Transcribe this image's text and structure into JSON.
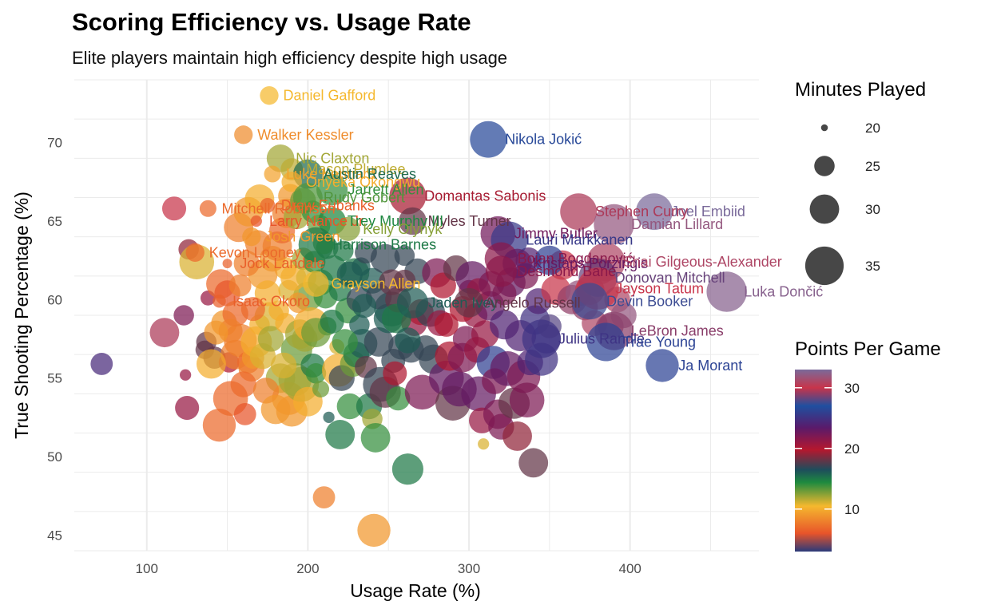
{
  "chart_data": {
    "type": "scatter",
    "title": "Scoring Efficiency vs. Usage Rate",
    "subtitle": "Elite players maintain high efficiency despite high usage",
    "xlabel": "Usage Rate (%)",
    "ylabel": "True Shooting Percentage (%)",
    "xlim": [
      55,
      480
    ],
    "ylim": [
      44,
      74
    ],
    "x_ticks": [
      100,
      200,
      300,
      400
    ],
    "y_ticks": [
      45,
      50,
      55,
      60,
      65,
      70
    ],
    "grid": true,
    "size_legend": {
      "title": "Minutes Played",
      "values": [
        20,
        25,
        30,
        35
      ]
    },
    "color_legend": {
      "title": "Points Per Game",
      "ticks": [
        10,
        20,
        30
      ],
      "range": [
        3,
        33
      ]
    },
    "colorscale": [
      "#2a3a7a",
      "#e8542a",
      "#f5b82e",
      "#1e8a3f",
      "#1e4d5c",
      "#b5172e",
      "#5a1a6a",
      "#1f4fa0",
      "#c8344a",
      "#7a6a9a"
    ],
    "labeled_points": [
      {
        "name": "Daniel Gafford",
        "x": 176,
        "y": 73.0,
        "ppg": 10.5,
        "min": 24
      },
      {
        "name": "Walker Kessler",
        "x": 160,
        "y": 70.5,
        "ppg": 8.5,
        "min": 24
      },
      {
        "name": "Nikola Jokić",
        "x": 312,
        "y": 70.2,
        "ppg": 26.5,
        "min": 34
      },
      {
        "name": "Nic Claxton",
        "x": 183,
        "y": 69.0,
        "ppg": 12.0,
        "min": 29
      },
      {
        "name": "Mason Plumlee",
        "x": 190,
        "y": 68.3,
        "ppg": 11.5,
        "min": 26
      },
      {
        "name": "Luke Kennard",
        "x": 178,
        "y": 68.0,
        "ppg": 9.5,
        "min": 23
      },
      {
        "name": "Austin Reaves",
        "x": 200,
        "y": 68.0,
        "ppg": 15.5,
        "min": 30
      },
      {
        "name": "Onyeka Okongwu",
        "x": 190,
        "y": 67.5,
        "ppg": 10.0,
        "min": 25
      },
      {
        "name": "Jarrett Allen",
        "x": 215,
        "y": 67.0,
        "ppg": 14.0,
        "min": 31
      },
      {
        "name": "Rudy Gobert",
        "x": 200,
        "y": 66.5,
        "ppg": 13.5,
        "min": 30
      },
      {
        "name": "Domantas Sabonis",
        "x": 262,
        "y": 66.6,
        "ppg": 19.5,
        "min": 34
      },
      {
        "name": "Drew Eubanks",
        "x": 175,
        "y": 66.0,
        "ppg": 6.5,
        "min": 22
      },
      {
        "name": "Mitchell Robinson",
        "x": 138,
        "y": 65.8,
        "ppg": 7.0,
        "min": 23
      },
      {
        "name": "Joel Embiid",
        "x": 415,
        "y": 65.6,
        "ppg": 33.0,
        "min": 34
      },
      {
        "name": "Stephen Curry",
        "x": 368,
        "y": 65.6,
        "ppg": 29.5,
        "min": 34
      },
      {
        "name": "Myles Turner",
        "x": 265,
        "y": 65.0,
        "ppg": 18.0,
        "min": 29
      },
      {
        "name": "Larry Nance Jr.",
        "x": 168,
        "y": 65.0,
        "ppg": 6.0,
        "min": 20
      },
      {
        "name": "Trey Murphy III",
        "x": 215,
        "y": 65.0,
        "ppg": 14.5,
        "min": 29
      },
      {
        "name": "Kelly Olynyk",
        "x": 225,
        "y": 64.5,
        "ppg": 12.5,
        "min": 27
      },
      {
        "name": "Damian Lillard",
        "x": 390,
        "y": 64.8,
        "ppg": 32.0,
        "min": 36
      },
      {
        "name": "Jimmy Butler",
        "x": 318,
        "y": 64.2,
        "ppg": 22.5,
        "min": 33
      },
      {
        "name": "Lauri Markkanen",
        "x": 325,
        "y": 63.8,
        "ppg": 25.5,
        "min": 34
      },
      {
        "name": "Josh Green",
        "x": 165,
        "y": 64.0,
        "ppg": 9.0,
        "min": 24
      },
      {
        "name": "Harrison Barnes",
        "x": 205,
        "y": 63.5,
        "ppg": 15.0,
        "min": 33
      },
      {
        "name": "Kevon Looney",
        "x": 130,
        "y": 63.0,
        "ppg": 7.0,
        "min": 24
      },
      {
        "name": "Bojan Bogdanović",
        "x": 320,
        "y": 62.6,
        "ppg": 21.5,
        "min": 32
      },
      {
        "name": "Kristaps Porziņģis",
        "x": 330,
        "y": 62.3,
        "ppg": 23.0,
        "min": 30
      },
      {
        "name": "Shai Gilgeous-Alexander",
        "x": 385,
        "y": 62.4,
        "ppg": 31.0,
        "min": 35
      },
      {
        "name": "Jock Landale",
        "x": 150,
        "y": 62.3,
        "ppg": 6.5,
        "min": 19
      },
      {
        "name": "Desmond Bane",
        "x": 320,
        "y": 61.8,
        "ppg": 21.5,
        "min": 31
      },
      {
        "name": "Donovan Mitchell",
        "x": 380,
        "y": 61.4,
        "ppg": 28.3,
        "min": 35
      },
      {
        "name": "Grayson Allen",
        "x": 205,
        "y": 61.0,
        "ppg": 10.5,
        "min": 28
      },
      {
        "name": "Jayson Tatum",
        "x": 380,
        "y": 60.7,
        "ppg": 30.0,
        "min": 37
      },
      {
        "name": "Luka Dončić",
        "x": 460,
        "y": 60.5,
        "ppg": 32.5,
        "min": 36
      },
      {
        "name": "Devin Booker",
        "x": 375,
        "y": 59.9,
        "ppg": 27.5,
        "min": 34
      },
      {
        "name": "Isaac Okoro",
        "x": 145,
        "y": 59.9,
        "ppg": 6.5,
        "min": 21
      },
      {
        "name": "Jaden Ivey",
        "x": 265,
        "y": 59.8,
        "ppg": 16.0,
        "min": 31
      },
      {
        "name": "Angelo Russell",
        "x": 300,
        "y": 59.8,
        "ppg": 18.0,
        "min": 30
      },
      {
        "name": "LeBron James",
        "x": 390,
        "y": 58.0,
        "ppg": 28.9,
        "min": 35
      },
      {
        "name": "Julius Randle",
        "x": 345,
        "y": 57.5,
        "ppg": 25.1,
        "min": 35
      },
      {
        "name": "Trae Young",
        "x": 385,
        "y": 57.3,
        "ppg": 26.2,
        "min": 35
      },
      {
        "name": "Ja Morant",
        "x": 420,
        "y": 55.8,
        "ppg": 26.2,
        "min": 32
      }
    ],
    "other_points": [
      [
        72,
        55.9,
        24.5,
        26
      ],
      [
        111,
        57.9,
        29.5,
        30
      ],
      [
        117,
        65.8,
        30,
        27
      ],
      [
        123,
        59.0,
        22,
        25
      ],
      [
        124,
        55.2,
        21,
        20
      ],
      [
        125,
        53.1,
        21,
        27
      ],
      [
        126,
        63.2,
        19,
        25
      ],
      [
        131,
        62.4,
        11,
        33
      ],
      [
        136,
        56.8,
        18,
        24
      ],
      [
        137,
        57.3,
        18,
        25
      ],
      [
        138,
        60.1,
        21,
        22
      ],
      [
        142,
        56.3,
        18,
        26
      ],
      [
        145,
        52.0,
        7,
        32
      ],
      [
        146,
        61.0,
        7,
        30
      ],
      [
        148,
        58.5,
        9,
        28
      ],
      [
        151,
        56.0,
        20,
        25
      ],
      [
        152,
        53.7,
        7,
        33
      ],
      [
        155,
        56.5,
        8,
        30
      ],
      [
        158,
        57.4,
        8,
        32
      ],
      [
        161,
        52.7,
        6,
        26
      ],
      [
        163,
        56.0,
        7,
        26
      ],
      [
        165,
        55.6,
        8,
        28
      ],
      [
        166,
        56.3,
        9,
        26
      ],
      [
        168,
        57.3,
        10,
        31
      ],
      [
        170,
        58.4,
        10,
        25
      ],
      [
        172,
        56.4,
        11,
        28
      ],
      [
        176,
        58.9,
        11,
        30
      ],
      [
        177,
        57.5,
        12,
        28
      ],
      [
        182,
        59.3,
        10,
        25
      ],
      [
        183,
        55.0,
        12,
        30
      ],
      [
        186,
        58.5,
        10,
        25
      ],
      [
        188,
        53.7,
        9,
        32
      ],
      [
        190,
        52.9,
        9,
        31
      ],
      [
        192,
        54.9,
        12,
        32
      ],
      [
        193,
        56.8,
        13,
        31
      ],
      [
        195,
        57.8,
        12,
        30
      ],
      [
        196,
        54.6,
        12,
        33
      ],
      [
        198,
        57.5,
        12,
        28
      ],
      [
        200,
        60.2,
        13,
        30
      ],
      [
        200,
        53.5,
        10,
        30
      ],
      [
        202,
        58.4,
        10,
        33
      ],
      [
        203,
        55.8,
        15,
        27
      ],
      [
        205,
        55.3,
        14,
        25
      ],
      [
        208,
        54.3,
        13,
        23
      ],
      [
        210,
        47.4,
        8,
        26
      ],
      [
        211,
        60.2,
        14,
        27
      ],
      [
        212,
        58.3,
        14,
        24
      ],
      [
        213,
        52.5,
        16,
        20
      ],
      [
        218,
        57.0,
        11,
        22
      ],
      [
        219,
        55.5,
        10,
        32
      ],
      [
        220,
        51.4,
        15,
        30
      ],
      [
        221,
        55.0,
        17,
        28
      ],
      [
        225,
        59.3,
        14,
        28
      ],
      [
        226,
        53.2,
        14,
        28
      ],
      [
        228,
        55.9,
        13,
        28
      ],
      [
        229,
        61.7,
        15,
        30
      ],
      [
        230,
        56.5,
        15,
        28
      ],
      [
        232,
        58.4,
        16,
        25
      ],
      [
        233,
        62.1,
        16,
        24
      ],
      [
        234,
        57.2,
        16,
        30
      ],
      [
        236,
        55.7,
        18,
        26
      ],
      [
        238,
        53.2,
        15,
        28
      ],
      [
        240,
        52.4,
        12,
        25
      ],
      [
        241,
        45.3,
        9,
        32
      ],
      [
        242,
        51.2,
        14,
        30
      ],
      [
        244,
        57.3,
        17,
        30
      ],
      [
        245,
        54.6,
        17,
        33
      ],
      [
        248,
        54.1,
        18,
        31
      ],
      [
        250,
        58.8,
        16,
        30
      ],
      [
        252,
        59.4,
        16,
        33
      ],
      [
        253,
        56.1,
        17,
        27
      ],
      [
        254,
        55.3,
        20,
        27
      ],
      [
        256,
        53.7,
        14,
        27
      ],
      [
        258,
        57.0,
        17,
        28
      ],
      [
        260,
        62.8,
        17,
        25
      ],
      [
        262,
        49.2,
        15,
        31
      ],
      [
        264,
        56.8,
        17,
        28
      ],
      [
        266,
        58.5,
        21,
        28
      ],
      [
        268,
        61.8,
        17,
        28
      ],
      [
        270,
        59.2,
        20,
        28
      ],
      [
        271,
        54.1,
        22,
        33
      ],
      [
        273,
        56.9,
        17,
        28
      ],
      [
        276,
        59.2,
        17,
        30
      ],
      [
        278,
        56.2,
        17,
        30
      ],
      [
        280,
        61.7,
        22,
        30
      ],
      [
        282,
        58.5,
        21,
        28
      ],
      [
        284,
        60.9,
        20,
        28
      ],
      [
        286,
        55.0,
        23,
        33
      ],
      [
        288,
        56.4,
        20,
        30
      ],
      [
        290,
        53.4,
        18,
        33
      ],
      [
        292,
        62.0,
        18,
        28
      ],
      [
        294,
        54.3,
        23,
        33
      ],
      [
        296,
        56.3,
        22,
        30
      ],
      [
        298,
        57.5,
        22,
        28
      ],
      [
        300,
        60.6,
        21,
        25
      ],
      [
        302,
        61.4,
        23,
        32
      ],
      [
        304,
        59.0,
        21,
        27
      ],
      [
        305,
        56.8,
        21,
        28
      ],
      [
        306,
        54.0,
        23,
        33
      ],
      [
        308,
        52.3,
        21,
        28
      ],
      [
        309,
        50.8,
        11,
        20
      ],
      [
        310,
        57.8,
        21,
        29
      ],
      [
        313,
        59.6,
        23,
        30
      ],
      [
        315,
        56.0,
        26,
        32
      ],
      [
        316,
        54.8,
        22,
        28
      ],
      [
        318,
        52.7,
        22,
        30
      ],
      [
        320,
        51.9,
        22,
        28
      ],
      [
        322,
        58.4,
        24,
        30
      ],
      [
        324,
        55.6,
        23,
        33
      ],
      [
        326,
        61.1,
        23,
        30
      ],
      [
        328,
        53.4,
        18,
        31
      ],
      [
        330,
        51.3,
        19,
        30
      ],
      [
        332,
        57.7,
        24,
        31
      ],
      [
        334,
        55.1,
        22,
        32
      ],
      [
        336,
        53.6,
        22,
        33
      ],
      [
        338,
        56.0,
        24,
        28
      ],
      [
        340,
        49.6,
        18,
        30
      ],
      [
        341,
        58.7,
        25,
        30
      ],
      [
        343,
        59.9,
        24,
        28
      ],
      [
        345,
        56.2,
        25,
        32
      ],
      [
        348,
        57.5,
        25,
        30
      ],
      [
        350,
        58.3,
        28,
        27
      ],
      [
        354,
        60.6,
        30,
        30
      ],
      [
        358,
        62.2,
        30,
        30
      ],
      [
        364,
        60.0,
        29,
        30
      ],
      [
        368,
        60.4,
        32,
        28
      ],
      [
        372,
        59.5,
        29,
        28
      ],
      [
        375,
        60.6,
        30,
        30
      ],
      [
        378,
        58.5,
        31,
        28
      ],
      [
        382,
        61.8,
        31,
        28
      ],
      [
        388,
        58.3,
        29,
        28
      ],
      [
        392,
        60.0,
        31,
        28
      ],
      [
        396,
        59.0,
        32,
        28
      ],
      [
        186,
        62.0,
        10,
        26
      ],
      [
        188,
        60.6,
        11,
        25
      ],
      [
        191,
        61.4,
        10,
        28
      ],
      [
        194,
        59.8,
        9,
        25
      ],
      [
        197,
        62.6,
        12,
        26
      ],
      [
        199,
        61.4,
        11,
        25
      ],
      [
        204,
        62.4,
        14,
        26
      ],
      [
        208,
        61.1,
        14,
        28
      ],
      [
        212,
        63.3,
        15,
        26
      ],
      [
        216,
        62.0,
        15,
        28
      ],
      [
        220,
        60.6,
        15,
        26
      ],
      [
        222,
        63.1,
        15,
        25
      ],
      [
        226,
        61.6,
        16,
        28
      ],
      [
        232,
        60.0,
        17,
        28
      ],
      [
        236,
        63.0,
        17,
        26
      ],
      [
        240,
        61.2,
        16,
        28
      ],
      [
        244,
        60.2,
        17,
        28
      ],
      [
        248,
        62.6,
        17,
        30
      ],
      [
        252,
        61.1,
        18,
        28
      ],
      [
        256,
        60.0,
        18,
        28
      ],
      [
        260,
        61.2,
        18,
        26
      ],
      [
        172,
        61.6,
        9,
        30
      ],
      [
        175,
        60.4,
        10,
        28
      ],
      [
        178,
        62.6,
        9,
        28
      ],
      [
        181,
        63.4,
        8,
        30
      ],
      [
        184,
        64.4,
        7,
        28
      ],
      [
        187,
        65.5,
        8,
        30
      ],
      [
        189,
        66.6,
        9,
        27
      ],
      [
        193,
        65.3,
        12,
        28
      ],
      [
        197,
        66.3,
        13,
        28
      ],
      [
        203,
        65.6,
        14,
        26
      ],
      [
        207,
        64.7,
        13,
        26
      ],
      [
        210,
        63.6,
        14,
        26
      ],
      [
        150,
        60.4,
        6,
        28
      ],
      [
        155,
        59.1,
        7,
        28
      ],
      [
        158,
        60.9,
        8,
        26
      ],
      [
        162,
        62.3,
        8,
        28
      ],
      [
        166,
        59.4,
        7,
        27
      ],
      [
        169,
        63.6,
        8,
        28
      ],
      [
        157,
        64.6,
        8,
        30
      ],
      [
        163,
        65.6,
        9,
        30
      ],
      [
        170,
        66.4,
        10,
        30
      ],
      [
        152,
        58.0,
        8,
        27
      ],
      [
        143,
        57.9,
        9,
        27
      ],
      [
        140,
        55.9,
        10,
        30
      ],
      [
        160,
        54.6,
        7,
        28
      ],
      [
        174,
        54.2,
        8,
        28
      ],
      [
        180,
        53.0,
        9,
        30
      ],
      [
        185,
        55.8,
        11,
        28
      ],
      [
        205,
        57.9,
        13,
        30
      ],
      [
        215,
        58.6,
        15,
        27
      ],
      [
        223,
        57.3,
        14,
        28
      ],
      [
        235,
        59.6,
        16,
        27
      ],
      [
        255,
        58.8,
        15,
        30
      ],
      [
        262,
        57.4,
        16,
        28
      ],
      [
        286,
        58.4,
        20,
        27
      ],
      [
        296,
        59.4,
        20,
        28
      ],
      [
        306,
        60.6,
        21,
        27
      ],
      [
        314,
        61.0,
        22,
        28
      ],
      [
        322,
        60.4,
        22,
        27
      ],
      [
        335,
        61.5,
        22,
        28
      ],
      [
        337,
        62.5,
        24,
        28
      ],
      [
        350,
        62.5,
        26,
        30
      ]
    ]
  }
}
